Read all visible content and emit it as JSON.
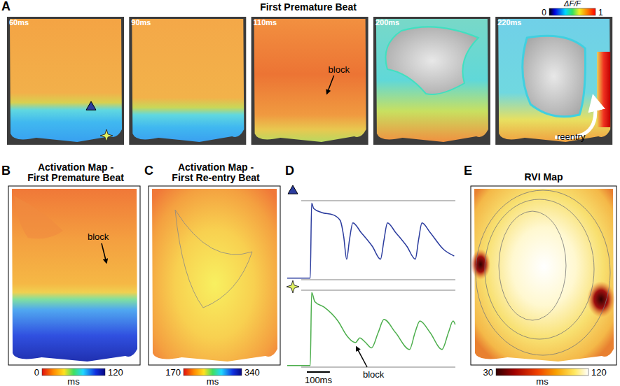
{
  "chart_data": [
    {
      "type": "image_sequence",
      "panel_label": "A",
      "title": "First Premature Beat",
      "frames": [
        "60ms",
        "90ms",
        "110ms",
        "200ms",
        "220ms"
      ],
      "annotations": [
        "block",
        "reentry"
      ],
      "colorbar": {
        "label": "ΔF/F",
        "range": [
          0,
          1
        ],
        "ticks": [
          0,
          1
        ]
      }
    },
    {
      "type": "heatmap",
      "panel_label": "B",
      "title": "Activation Map - First Premature Beat",
      "annotations": [
        "block"
      ],
      "colorbar": {
        "label": "ms",
        "range": [
          0,
          120
        ],
        "ticks": [
          0,
          120
        ]
      }
    },
    {
      "type": "heatmap",
      "panel_label": "C",
      "title": "Activation Map - First Re-entry Beat",
      "colorbar": {
        "label": "ms",
        "range": [
          170,
          340
        ],
        "ticks": [
          170,
          340
        ]
      }
    },
    {
      "type": "line",
      "panel_label": "D",
      "tick_labels": false,
      "xlim": [
        0,
        730
      ],
      "ylim": [
        0,
        1
      ],
      "series": [
        {
          "marker": "triangle",
          "color": "#2b3c9e",
          "x": [
            0,
            100,
            106,
            115,
            150,
            200,
            230,
            245,
            258,
            270,
            285,
            320,
            370,
            405,
            420,
            435,
            470,
            520,
            556,
            570,
            585,
            620,
            680,
            725
          ],
          "values": [
            0.02,
            0.02,
            0.97,
            0.9,
            0.85,
            0.82,
            0.75,
            0.55,
            0.26,
            0.5,
            0.72,
            0.6,
            0.42,
            0.26,
            0.5,
            0.72,
            0.6,
            0.42,
            0.26,
            0.5,
            0.72,
            0.6,
            0.38,
            0.3
          ]
        },
        {
          "marker": "star",
          "color": "#4cae4c",
          "x": [
            0,
            100,
            106,
            120,
            160,
            220,
            261,
            285,
            297,
            315,
            340,
            366,
            395,
            420,
            470,
            531,
            555,
            576,
            620,
            672,
            700,
            720,
            730
          ],
          "values": [
            0.02,
            0.02,
            0.97,
            0.85,
            0.78,
            0.6,
            0.4,
            0.33,
            0.32,
            0.38,
            0.32,
            0.25,
            0.45,
            0.62,
            0.45,
            0.23,
            0.45,
            0.6,
            0.45,
            0.23,
            0.45,
            0.6,
            0.55
          ]
        }
      ],
      "scale_bar": {
        "value": 100,
        "label": "100ms"
      },
      "annotations": [
        "block"
      ]
    },
    {
      "type": "heatmap",
      "panel_label": "E",
      "title": "RVI Map",
      "colorbar": {
        "label": "ms",
        "range": [
          30,
          120
        ],
        "ticks": [
          30,
          120
        ]
      }
    }
  ]
}
